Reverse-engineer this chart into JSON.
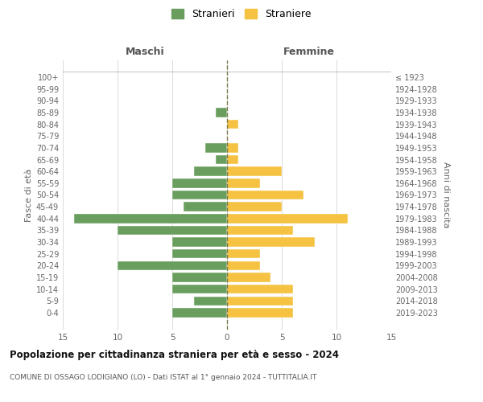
{
  "age_groups": [
    "0-4",
    "5-9",
    "10-14",
    "15-19",
    "20-24",
    "25-29",
    "30-34",
    "35-39",
    "40-44",
    "45-49",
    "50-54",
    "55-59",
    "60-64",
    "65-69",
    "70-74",
    "75-79",
    "80-84",
    "85-89",
    "90-94",
    "95-99",
    "100+"
  ],
  "birth_years": [
    "2019-2023",
    "2014-2018",
    "2009-2013",
    "2004-2008",
    "1999-2003",
    "1994-1998",
    "1989-1993",
    "1984-1988",
    "1979-1983",
    "1974-1978",
    "1969-1973",
    "1964-1968",
    "1959-1963",
    "1954-1958",
    "1949-1953",
    "1944-1948",
    "1939-1943",
    "1934-1938",
    "1929-1933",
    "1924-1928",
    "≤ 1923"
  ],
  "males": [
    5,
    3,
    5,
    5,
    10,
    5,
    5,
    10,
    14,
    4,
    5,
    5,
    3,
    1,
    2,
    0,
    0,
    1,
    0,
    0,
    0
  ],
  "females": [
    6,
    6,
    6,
    4,
    3,
    3,
    8,
    6,
    11,
    5,
    7,
    3,
    5,
    1,
    1,
    0,
    1,
    0,
    0,
    0,
    0
  ],
  "male_color": "#6a9e5e",
  "female_color": "#f5c242",
  "center_line_color": "#7a7a4a",
  "grid_color": "#cccccc",
  "title": "Popolazione per cittadinanza straniera per età e sesso - 2024",
  "subtitle": "COMUNE DI OSSAGO LODIGIANO (LO) - Dati ISTAT al 1° gennaio 2024 - TUTTITALIA.IT",
  "xlabel_left": "Maschi",
  "xlabel_right": "Femmine",
  "ylabel_left": "Fasce di età",
  "ylabel_right": "Anni di nascita",
  "legend_male": "Stranieri",
  "legend_female": "Straniere",
  "xlim": 15,
  "background_color": "#ffffff"
}
